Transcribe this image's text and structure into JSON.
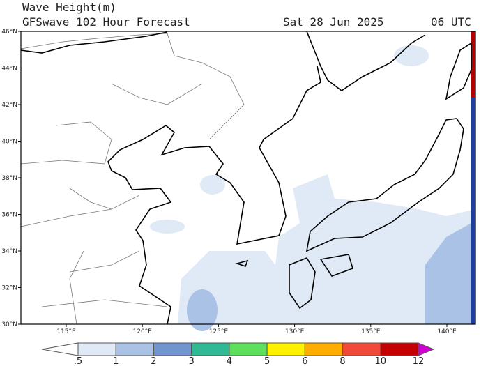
{
  "header": {
    "title": "Wave Height(m)",
    "subtitle": "GFSwave 102 Hour Forecast",
    "date": "Sat 28 Jun 2025",
    "time": "06 UTC"
  },
  "lat_labels": [
    "46°N",
    "44°N",
    "42°N",
    "40°N",
    "38°N",
    "36°N",
    "34°N",
    "32°N",
    "30°N"
  ],
  "lon_labels": [
    "115°E",
    "120°E",
    "125°E",
    "130°E",
    "135°E",
    "140°E"
  ],
  "colorbar": {
    "labels": [
      ".5",
      "1",
      "2",
      "3",
      "4",
      "5",
      "6",
      "8",
      "10",
      "12"
    ],
    "colors": [
      "#dfeaf6",
      "#a9c2e6",
      "#7095cf",
      "#31b894",
      "#5fe05c",
      "#fff200",
      "#ffae00",
      "#f04a3a",
      "#c40000"
    ],
    "under_color": "#ffffff",
    "over_color": "#d000d0"
  }
}
